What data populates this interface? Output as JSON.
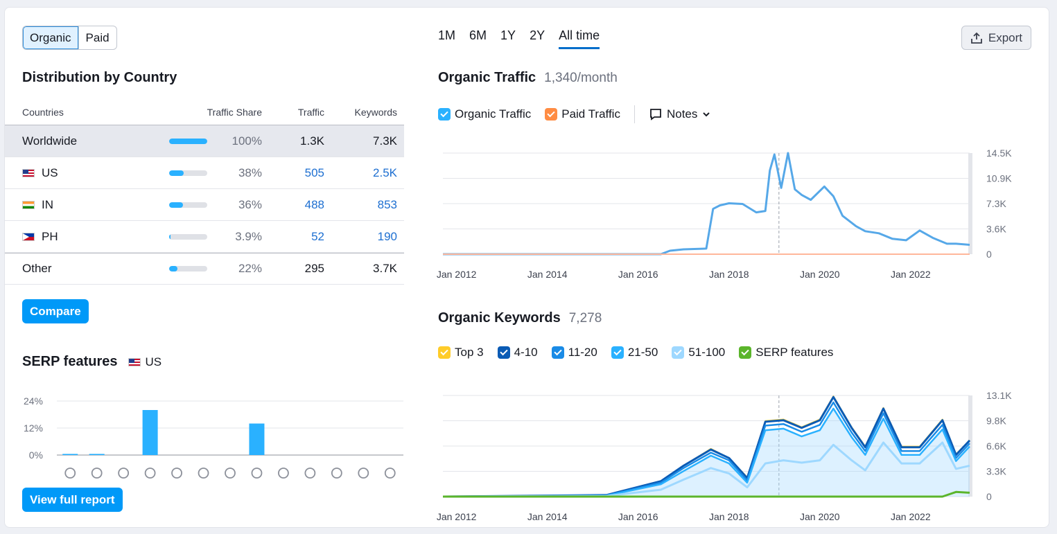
{
  "toggle": {
    "organic": "Organic",
    "paid": "Paid"
  },
  "distribution": {
    "title": "Distribution by Country",
    "headers": {
      "countries": "Countries",
      "share": "Traffic Share",
      "traffic": "Traffic",
      "keywords": "Keywords"
    },
    "rows": [
      {
        "name": "Worldwide",
        "flag": "",
        "share": "100%",
        "share_value": 1.0,
        "traffic": "1.3K",
        "keywords": "7.3K"
      },
      {
        "name": "US",
        "flag": "us",
        "share": "38%",
        "share_value": 0.38,
        "traffic": "505",
        "keywords": "2.5K"
      },
      {
        "name": "IN",
        "flag": "in",
        "share": "36%",
        "share_value": 0.36,
        "traffic": "488",
        "keywords": "853"
      },
      {
        "name": "PH",
        "flag": "ph",
        "share": "3.9%",
        "share_value": 0.039,
        "traffic": "52",
        "keywords": "190"
      },
      {
        "name": "Other",
        "flag": "",
        "share": "22%",
        "share_value": 0.22,
        "traffic": "295",
        "keywords": "3.7K"
      }
    ],
    "compare_label": "Compare"
  },
  "serp": {
    "title": "SERP features",
    "country": "US",
    "report_label": "View full report",
    "icons": [
      "crown-icon",
      "link-icon",
      "star-icon",
      "image-icon",
      "image-pack-icon",
      "video-icon",
      "video-player-icon",
      "faq-icon",
      "local-pack-icon",
      "knowledge-icon",
      "news-icon",
      "jobs-icon",
      "twitter-icon"
    ]
  },
  "periods": {
    "items": [
      "1M",
      "6M",
      "1Y",
      "2Y",
      "All time"
    ],
    "active": "All time"
  },
  "export_label": "Export",
  "organic_traffic": {
    "title": "Organic Traffic",
    "value": "1,340/month"
  },
  "traffic_legend": {
    "organic": "Organic Traffic",
    "paid": "Paid Traffic",
    "notes": "Notes"
  },
  "organic_keywords": {
    "title": "Organic Keywords",
    "value": "7,278"
  },
  "keywords_legend": [
    {
      "label": "Top 3",
      "color": "#ffcc29"
    },
    {
      "label": "4-10",
      "color": "#0a5bb5"
    },
    {
      "label": "11-20",
      "color": "#1a8be6"
    },
    {
      "label": "21-50",
      "color": "#2ab1ff"
    },
    {
      "label": "51-100",
      "color": "#9ed8ff"
    },
    {
      "label": "SERP features",
      "color": "#5bb52b"
    }
  ],
  "chart_data": [
    {
      "type": "bar",
      "title": "SERP features",
      "categories": [
        "crown",
        "link",
        "star",
        "image",
        "image-pack",
        "video",
        "video-player",
        "faq",
        "local-pack",
        "knowledge",
        "news",
        "jobs",
        "twitter"
      ],
      "values": [
        0.5,
        0.5,
        0,
        20,
        0,
        0,
        0,
        14,
        0,
        0,
        0,
        0,
        0
      ],
      "yticks": [
        "24%",
        "12%",
        "0%"
      ],
      "ylim": [
        0,
        24
      ]
    },
    {
      "type": "line",
      "title": "Organic Traffic",
      "xticks": [
        "Jan 2012",
        "Jan 2014",
        "Jan 2016",
        "Jan 2018",
        "Jan 2020",
        "Jan 2022"
      ],
      "yticks": [
        "14.5K",
        "10.9K",
        "7.3K",
        "3.6K",
        "0"
      ],
      "ylim": [
        0,
        14500
      ],
      "x": [
        2011.7,
        2016.5,
        2016.7,
        2017.0,
        2017.5,
        2017.65,
        2017.8,
        2018.0,
        2018.3,
        2018.6,
        2018.8,
        2018.9,
        2019.0,
        2019.15,
        2019.3,
        2019.45,
        2019.6,
        2019.8,
        2020.1,
        2020.3,
        2020.5,
        2020.8,
        2021.0,
        2021.3,
        2021.6,
        2021.9,
        2022.2,
        2022.5,
        2022.8,
        2023.0,
        2023.3
      ],
      "series": [
        {
          "name": "Organic Traffic",
          "values": [
            0,
            0,
            500,
            700,
            800,
            6500,
            7000,
            7300,
            7200,
            6000,
            6200,
            12000,
            14300,
            9500,
            14500,
            9300,
            8500,
            7800,
            9700,
            8300,
            5500,
            4000,
            3300,
            3000,
            2200,
            2000,
            3400,
            2300,
            1500,
            1500,
            1340
          ]
        },
        {
          "name": "Paid Traffic",
          "values": [
            0,
            0,
            0,
            0,
            0,
            0,
            0,
            0,
            0,
            0,
            0,
            0,
            0,
            0,
            0,
            0,
            0,
            0,
            0,
            0,
            0,
            0,
            0,
            0,
            0,
            0,
            0,
            0,
            0,
            0,
            0
          ]
        }
      ]
    },
    {
      "type": "area",
      "title": "Organic Keywords",
      "xticks": [
        "Jan 2012",
        "Jan 2014",
        "Jan 2016",
        "Jan 2018",
        "Jan 2020",
        "Jan 2022"
      ],
      "yticks": [
        "13.1K",
        "9.8K",
        "6.6K",
        "3.3K",
        "0"
      ],
      "ylim": [
        0,
        13100
      ],
      "x": [
        2011.7,
        2015.3,
        2016.5,
        2017.0,
        2017.6,
        2018.0,
        2018.4,
        2018.8,
        2019.2,
        2019.6,
        2020.0,
        2020.3,
        2020.7,
        2021.0,
        2021.4,
        2021.8,
        2022.2,
        2022.7,
        2023.0,
        2023.3
      ],
      "series": [
        {
          "name": "Top 3",
          "values": [
            0,
            200,
            2000,
            4000,
            6200,
            5000,
            2500,
            9800,
            10000,
            9000,
            10000,
            13000,
            9000,
            6500,
            11500,
            6500,
            6500,
            10000,
            5500,
            7300
          ]
        },
        {
          "name": "4-10",
          "values": [
            0,
            200,
            2000,
            4000,
            6100,
            5000,
            2400,
            9700,
            9900,
            8900,
            9900,
            12900,
            8900,
            6400,
            11400,
            6400,
            6400,
            9900,
            5400,
            7278
          ]
        },
        {
          "name": "11-20",
          "values": [
            0,
            150,
            1800,
            3700,
            5700,
            4700,
            2100,
            9200,
            9400,
            8400,
            9300,
            12200,
            8300,
            5900,
            10800,
            5900,
            5900,
            9300,
            5000,
            6900
          ]
        },
        {
          "name": "21-50",
          "values": [
            0,
            120,
            1600,
            3300,
            5300,
            4300,
            1800,
            8600,
            8800,
            7800,
            8600,
            11400,
            7700,
            5400,
            10100,
            5400,
            5400,
            8700,
            4600,
            6500
          ]
        },
        {
          "name": "51-100",
          "values": [
            0,
            80,
            900,
            2200,
            3700,
            3000,
            1200,
            4300,
            4700,
            4400,
            4700,
            6700,
            4700,
            3400,
            7000,
            4300,
            4300,
            7000,
            3600,
            4000
          ]
        },
        {
          "name": "SERP features",
          "values": [
            0,
            0,
            0,
            0,
            0,
            0,
            0,
            0,
            0,
            0,
            0,
            0,
            0,
            0,
            0,
            0,
            0,
            0,
            600,
            500
          ]
        }
      ]
    }
  ]
}
